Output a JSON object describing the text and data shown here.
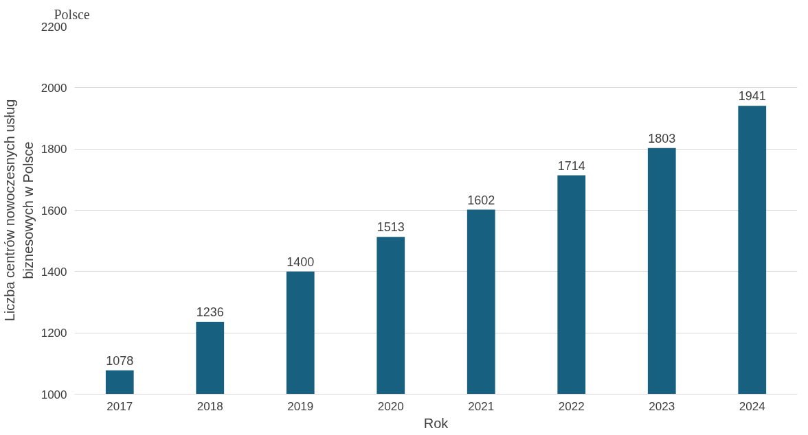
{
  "chart_data": {
    "type": "bar",
    "annotations": [
      "Polsce"
    ],
    "xlabel": "Rok",
    "ylabel": "Liczba centrów nowoczesnych usług\nbiznesowych w Polsce",
    "categories": [
      "2017",
      "2018",
      "2019",
      "2020",
      "2021",
      "2022",
      "2023",
      "2024"
    ],
    "values": [
      1078,
      1236,
      1400,
      1513,
      1602,
      1714,
      1803,
      1941
    ],
    "color": "#17607f",
    "ylim": [
      1000,
      2200
    ],
    "yticks": [
      1000,
      1200,
      1400,
      1600,
      1800,
      2000,
      2200
    ],
    "grid": "y",
    "data_labels": true
  }
}
